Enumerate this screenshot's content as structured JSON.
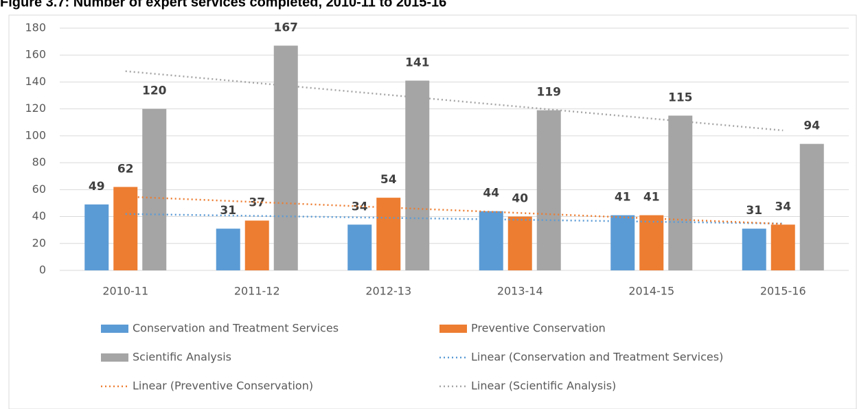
{
  "chart_data": {
    "type": "bar",
    "title": "Figure 3.7: Number of expert services completed, 2010-11 to 2015-16",
    "categories": [
      "2010-11",
      "2011-12",
      "2012-13",
      "2013-14",
      "2014-15",
      "2015-16"
    ],
    "series": [
      {
        "name": "Conservation and Treatment Services",
        "color": "#5b9bd5",
        "values": [
          49,
          31,
          34,
          44,
          41,
          31
        ]
      },
      {
        "name": "Preventive Conservation",
        "color": "#ed7d31",
        "values": [
          62,
          37,
          54,
          40,
          41,
          34
        ]
      },
      {
        "name": "Scientific Analysis",
        "color": "#a5a5a5",
        "values": [
          120,
          167,
          141,
          119,
          115,
          94
        ]
      }
    ],
    "trendlines": [
      {
        "name": "Linear (Conservation and Treatment Services)",
        "series": 0,
        "color": "#5b9bd5"
      },
      {
        "name": "Linear (Preventive Conservation)",
        "series": 1,
        "color": "#ed7d31"
      },
      {
        "name": "Linear (Scientific Analysis)",
        "series": 2,
        "color": "#a5a5a5"
      }
    ],
    "ylim": [
      0,
      180
    ],
    "yticks": [
      0,
      20,
      40,
      60,
      80,
      100,
      120,
      140,
      160,
      180
    ],
    "grid": true,
    "legend": "bottom"
  }
}
